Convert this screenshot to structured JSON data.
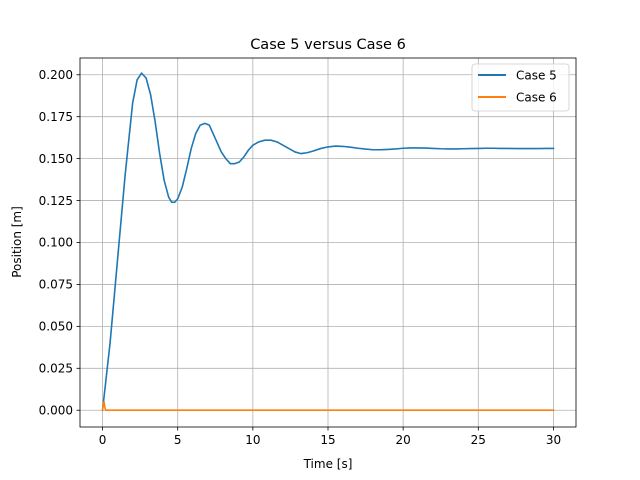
{
  "chart_data": {
    "type": "line",
    "title": "Case 5 versus Case 6",
    "xlabel": "Time [s]",
    "ylabel": "Position [m]",
    "xlim": [
      -1.5,
      31.5
    ],
    "ylim": [
      -0.01,
      0.21
    ],
    "xticks": [
      0,
      5,
      10,
      15,
      20,
      25,
      30
    ],
    "xtick_labels": [
      "0",
      "5",
      "10",
      "15",
      "20",
      "25",
      "30"
    ],
    "yticks": [
      0.0,
      0.025,
      0.05,
      0.075,
      0.1,
      0.125,
      0.15,
      0.175,
      0.2
    ],
    "ytick_labels": [
      "0.000",
      "0.025",
      "0.050",
      "0.075",
      "0.100",
      "0.125",
      "0.150",
      "0.175",
      "0.200"
    ],
    "grid": true,
    "legend_position": "top-right",
    "series": [
      {
        "name": "Case 5",
        "color": "#1f77b4",
        "x": [
          0.0,
          0.5,
          1.0,
          1.5,
          2.0,
          2.3,
          2.6,
          2.9,
          3.2,
          3.5,
          3.8,
          4.1,
          4.4,
          4.6,
          4.8,
          5.0,
          5.3,
          5.6,
          5.9,
          6.2,
          6.5,
          6.8,
          7.1,
          7.3,
          7.6,
          7.9,
          8.2,
          8.5,
          8.8,
          9.1,
          9.4,
          9.7,
          10.0,
          10.4,
          10.8,
          11.2,
          11.6,
          12.0,
          12.4,
          12.8,
          13.2,
          13.6,
          14.0,
          14.5,
          15.0,
          15.5,
          16.0,
          16.5,
          17.0,
          17.5,
          18.0,
          18.5,
          19.0,
          19.5,
          20.0,
          20.5,
          21.0,
          21.5,
          22.0,
          22.5,
          23.0,
          23.5,
          24.0,
          24.5,
          25.0,
          25.5,
          26.0,
          26.5,
          27.0,
          27.5,
          28.0,
          28.5,
          29.0,
          29.5,
          30.0
        ],
        "y": [
          0.0,
          0.04,
          0.09,
          0.14,
          0.183,
          0.197,
          0.201,
          0.198,
          0.188,
          0.172,
          0.153,
          0.137,
          0.127,
          0.124,
          0.124,
          0.126,
          0.133,
          0.144,
          0.156,
          0.165,
          0.17,
          0.171,
          0.17,
          0.166,
          0.16,
          0.154,
          0.15,
          0.147,
          0.147,
          0.148,
          0.151,
          0.155,
          0.158,
          0.16,
          0.161,
          0.161,
          0.16,
          0.158,
          0.156,
          0.154,
          0.153,
          0.1535,
          0.1545,
          0.156,
          0.157,
          0.1575,
          0.1573,
          0.1568,
          0.1562,
          0.1557,
          0.1553,
          0.1553,
          0.1555,
          0.1558,
          0.1562,
          0.1564,
          0.1564,
          0.1563,
          0.1561,
          0.1559,
          0.1558,
          0.1558,
          0.1559,
          0.156,
          0.1561,
          0.1562,
          0.1562,
          0.1561,
          0.1561,
          0.156,
          0.156,
          0.156,
          0.156,
          0.1561,
          0.1561
        ]
      },
      {
        "name": "Case 6",
        "color": "#ff7f0e",
        "x": [
          0.0,
          0.05,
          0.1,
          0.15,
          0.2,
          0.3,
          1.0,
          5.0,
          10.0,
          15.0,
          20.0,
          25.0,
          30.0
        ],
        "y": [
          0.0,
          0.004,
          0.005,
          0.002,
          0.0,
          0.0,
          0.0,
          0.0,
          0.0,
          0.0,
          0.0,
          0.0,
          0.0
        ]
      }
    ]
  }
}
